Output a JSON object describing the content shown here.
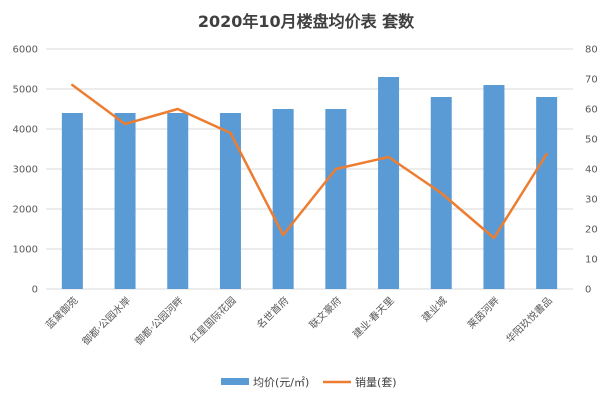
{
  "chart_data": {
    "type": "bar+line",
    "title": "2020年10月楼盘均价表 套数",
    "categories": [
      "蓝黛御苑",
      "御都·公园水岸",
      "御都·公园河畔",
      "红星国际花园",
      "名世首府",
      "联文豪府",
      "建业·春天里",
      "建业城",
      "莱茵河畔",
      "华阳玖悦書品"
    ],
    "series": [
      {
        "name": "均价(元/㎡)",
        "type": "bar",
        "axis": "left",
        "color": "#5b9bd5",
        "values": [
          4400,
          4400,
          4400,
          4400,
          4500,
          4500,
          5300,
          4800,
          5100,
          4800
        ]
      },
      {
        "name": "销量(套)",
        "type": "line",
        "axis": "right",
        "color": "#ed7d31",
        "values": [
          68,
          55,
          60,
          52,
          18,
          40,
          44,
          32,
          17,
          45
        ]
      }
    ],
    "y_left": {
      "min": 0,
      "max": 6000,
      "ticks": [
        "0",
        "1000",
        "2000",
        "3000",
        "4000",
        "5000",
        "6000"
      ]
    },
    "y_right": {
      "min": 0,
      "max": 80,
      "ticks": [
        "0",
        "10",
        "20",
        "30",
        "40",
        "50",
        "60",
        "70",
        "80"
      ]
    },
    "grid": true,
    "legend_position": "bottom"
  }
}
